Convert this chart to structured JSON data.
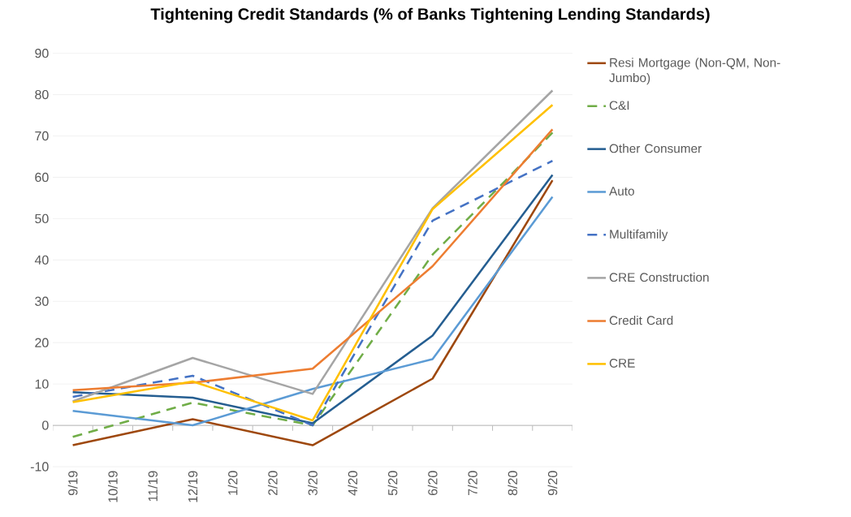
{
  "chart_data": {
    "type": "line",
    "title": "Tightening Credit Standards (% of Banks Tightening Lending Standards)",
    "categories": [
      "9/19",
      "10/19",
      "11/19",
      "12/19",
      "1/20",
      "2/20",
      "3/20",
      "4/20",
      "5/20",
      "6/20",
      "7/20",
      "8/20",
      "9/20"
    ],
    "series": [
      {
        "name": "Resi Mortgage (Non-QM, Non-Jumbo)",
        "color": "#9e480e",
        "values": [
          -4.8,
          null,
          null,
          1.5,
          null,
          null,
          -4.8,
          null,
          null,
          11.3,
          null,
          null,
          59.3
        ]
      },
      {
        "name": "C&I",
        "color": "#70ad47",
        "line_style": "dashed",
        "values": [
          -2.8,
          null,
          null,
          5.5,
          null,
          null,
          0,
          null,
          null,
          41.3,
          null,
          null,
          70.8
        ]
      },
      {
        "name": "Other Consumer",
        "color": "#255e91",
        "values": [
          8.0,
          null,
          null,
          6.7,
          null,
          null,
          0.5,
          null,
          null,
          21.7,
          null,
          null,
          60.6
        ]
      },
      {
        "name": "Auto",
        "color": "#5b9bd5",
        "values": [
          3.5,
          null,
          null,
          0,
          null,
          null,
          8.8,
          null,
          null,
          16.0,
          null,
          null,
          55.3
        ]
      },
      {
        "name": "Multifamily",
        "color": "#4472c4",
        "line_style": "dashed",
        "values": [
          6.9,
          null,
          null,
          12.0,
          null,
          null,
          0,
          null,
          null,
          49.5,
          null,
          null,
          64.0
        ]
      },
      {
        "name": "CRE Construction",
        "color": "#a5a5a5",
        "values": [
          5.8,
          null,
          null,
          16.3,
          null,
          null,
          7.6,
          null,
          null,
          52.5,
          null,
          null,
          81.0
        ]
      },
      {
        "name": "Credit Card",
        "color": "#ed7d31",
        "values": [
          8.5,
          null,
          null,
          10.3,
          null,
          null,
          13.7,
          null,
          null,
          38.5,
          null,
          null,
          71.6
        ]
      },
      {
        "name": "CRE",
        "color": "#ffc000",
        "values": [
          5.6,
          null,
          null,
          10.6,
          null,
          null,
          1.2,
          null,
          null,
          52.3,
          null,
          null,
          77.5
        ]
      }
    ],
    "ylim": [
      -10,
      90
    ],
    "yticks": [
      -10,
      0,
      10,
      20,
      30,
      40,
      50,
      60,
      70,
      80,
      90
    ],
    "grid": "y",
    "legend": "right"
  }
}
